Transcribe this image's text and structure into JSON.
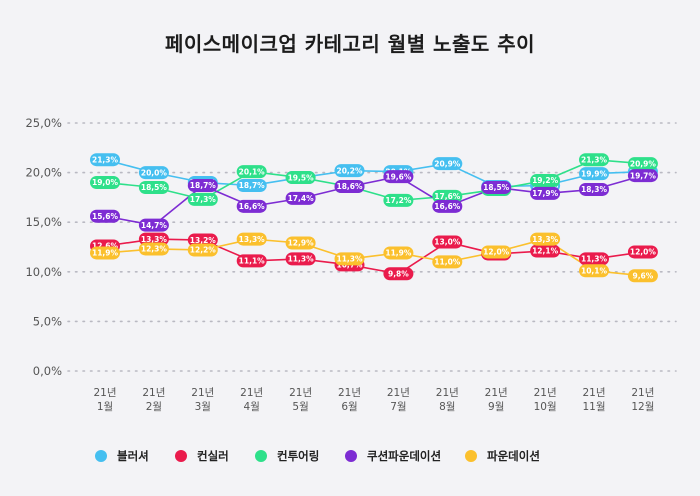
{
  "chart_data": {
    "type": "line",
    "title": "페이스메이크업 카테고리 월별 노출도 추이",
    "categories": [
      [
        "21년",
        "1월"
      ],
      [
        "21년",
        "2월"
      ],
      [
        "21년",
        "3월"
      ],
      [
        "21년",
        "4월"
      ],
      [
        "21년",
        "5월"
      ],
      [
        "21년",
        "6월"
      ],
      [
        "21년",
        "7월"
      ],
      [
        "21년",
        "8월"
      ],
      [
        "21년",
        "9월"
      ],
      [
        "21년",
        "10월"
      ],
      [
        "21년",
        "11월"
      ],
      [
        "21년",
        "12월"
      ]
    ],
    "yticks": [
      "0,0%",
      "5,0%",
      "10,0%",
      "15,0%",
      "20,0%",
      "25,0%"
    ],
    "ylim": [
      0,
      25
    ],
    "grid": true,
    "legend_position": "bottom",
    "series": [
      {
        "name": "블러셔",
        "color": "#45bff0",
        "values": [
          21.3,
          20.0,
          19.0,
          18.7,
          19.5,
          20.2,
          20.1,
          20.9,
          18.6,
          18.7,
          19.9,
          20.1
        ],
        "labels": [
          "21,3%",
          "20,0%",
          "19,0%",
          "18,7%",
          "19,5%",
          "20,2%",
          "20,1%",
          "20,9%",
          "18,6%",
          "18,7%",
          "19,9%",
          "20,1%"
        ]
      },
      {
        "name": "컨실러",
        "color": "#ea1b4c",
        "values": [
          12.6,
          13.3,
          13.2,
          11.1,
          11.3,
          10.7,
          9.8,
          13.0,
          11.8,
          12.1,
          11.3,
          12.0
        ],
        "labels": [
          "12,6%",
          "13,3%",
          "13,2%",
          "11,1%",
          "11,3%",
          "10,7%",
          "9,8%",
          "13,0%",
          "11,8%",
          "12,1%",
          "11,3%",
          "12,0%"
        ]
      },
      {
        "name": "컨투어링",
        "color": "#2ee08a",
        "values": [
          19.0,
          18.5,
          17.3,
          20.1,
          19.5,
          18.6,
          17.2,
          17.6,
          18.3,
          19.2,
          21.3,
          20.9
        ],
        "labels": [
          "19,0%",
          "18,5%",
          "17,3%",
          "20,1%",
          "19,5%",
          "18,6%",
          "17,2%",
          "17,6%",
          "18,3%",
          "19,2%",
          "21,3%",
          "20,9%"
        ]
      },
      {
        "name": "쿠션파운데이션",
        "color": "#7d2cd3",
        "values": [
          15.6,
          14.7,
          18.7,
          16.6,
          17.4,
          18.6,
          19.6,
          16.6,
          18.5,
          17.9,
          18.3,
          19.7
        ],
        "labels": [
          "15,6%",
          "14,7%",
          "18,7%",
          "16,6%",
          "17,4%",
          "18,6%",
          "19,6%",
          "16,6%",
          "18,5%",
          "17,9%",
          "18,3%",
          "19,7%"
        ]
      },
      {
        "name": "파운데이션",
        "color": "#fbc02d",
        "values": [
          11.9,
          12.3,
          12.2,
          13.3,
          12.9,
          11.3,
          11.9,
          11.0,
          12.0,
          13.3,
          10.1,
          9.6
        ],
        "labels": [
          "11,9%",
          "12,3%",
          "12,2%",
          "13,3%",
          "12,9%",
          "11,3%",
          "11,9%",
          "11,0%",
          "12,0%",
          "13,3%",
          "10,1%",
          "9,6%"
        ]
      }
    ]
  }
}
